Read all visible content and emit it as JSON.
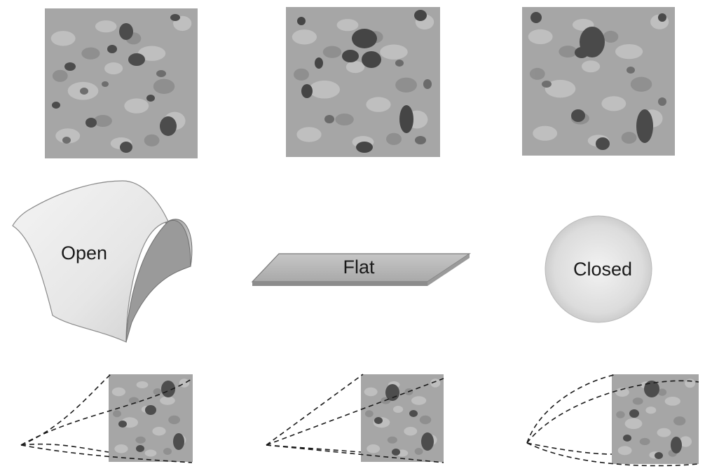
{
  "figure": {
    "labels": {
      "open": "Open",
      "flat": "Flat",
      "closed": "Closed"
    },
    "columns": [
      {
        "geometry": "open",
        "map_name": "map-open"
      },
      {
        "geometry": "flat",
        "map_name": "map-flat"
      },
      {
        "geometry": "closed",
        "map_name": "map-closed"
      }
    ],
    "colors": {
      "map_base": "#a9a9a9",
      "map_light": "#c4c4c4",
      "map_mid": "#8f8f8f",
      "map_dark": "#5a5a5a",
      "map_darkest": "#3d3d3d",
      "surface_light": "#f1f1f1",
      "surface_mid": "#d5d5d5",
      "surface_dark": "#9c9c9c",
      "flat_plane": "#b8b8b8",
      "sphere_light": "#ececec",
      "sphere_dark": "#c9c9c9",
      "dash": "#1a1a1a"
    }
  }
}
